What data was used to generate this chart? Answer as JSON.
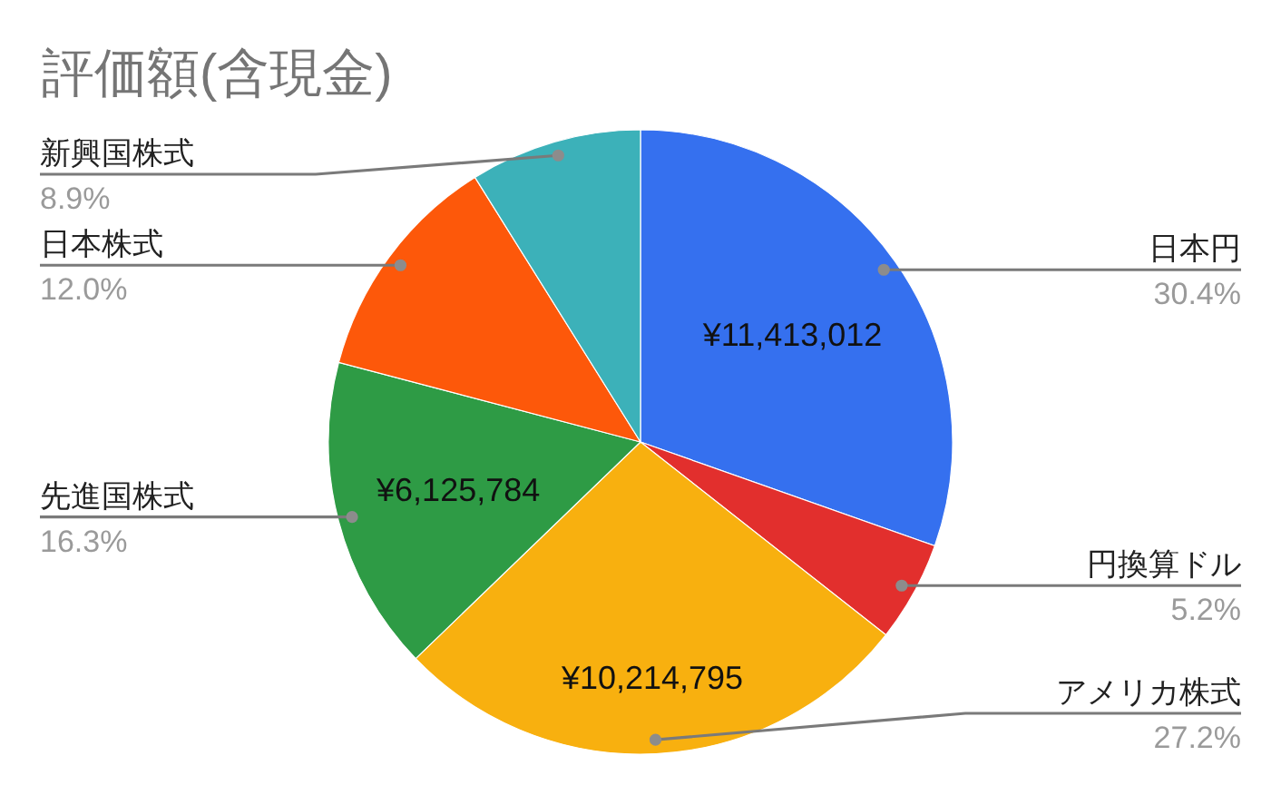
{
  "chart_data": {
    "type": "pie",
    "title": "評価額(含現金)",
    "categories": [
      "日本円",
      "円換算ドル",
      "アメリカ株式",
      "先進国株式",
      "日本株式",
      "新興国株式"
    ],
    "values": [
      30.4,
      5.2,
      27.2,
      16.3,
      12.0,
      8.9
    ],
    "colors": [
      "#3570ef",
      "#e22f2d",
      "#f8b00f",
      "#2e9b45",
      "#fd580a",
      "#3cb1b9"
    ],
    "value_labels": [
      "30.4%",
      "5.2%",
      "27.2%",
      "16.3%",
      "12.0%",
      "8.9%"
    ],
    "annotations": [
      {
        "text": "¥11,413,012",
        "x": "日本円"
      },
      {
        "text": "¥10,214,795",
        "x": "アメリカ株式"
      },
      {
        "text": "¥6,125,784",
        "x": "先進国株式"
      }
    ]
  }
}
